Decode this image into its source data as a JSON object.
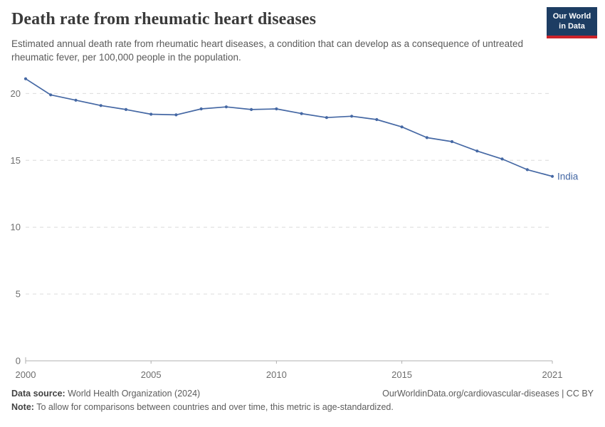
{
  "header": {
    "title": "Death rate from rheumatic heart diseases",
    "subtitle": "Estimated annual death rate from rheumatic heart diseases, a condition that can develop as a consequence of untreated rheumatic fever, per 100,000 people in the population.",
    "logo": {
      "line1": "Our World",
      "line2": "in Data"
    }
  },
  "chart_data": {
    "type": "line",
    "title": "Death rate from rheumatic heart diseases",
    "xlabel": "",
    "ylabel": "",
    "x": [
      2000,
      2001,
      2002,
      2003,
      2004,
      2005,
      2006,
      2007,
      2008,
      2009,
      2010,
      2011,
      2012,
      2013,
      2014,
      2015,
      2016,
      2017,
      2018,
      2019,
      2020,
      2021
    ],
    "series": [
      {
        "name": "India",
        "color": "#4568a4",
        "values": [
          21.1,
          19.9,
          19.5,
          19.1,
          18.8,
          18.45,
          18.4,
          18.85,
          19.0,
          18.8,
          18.85,
          18.5,
          18.2,
          18.3,
          18.05,
          17.5,
          16.7,
          16.4,
          15.7,
          15.1,
          14.3,
          13.8
        ]
      }
    ],
    "xticks": [
      2000,
      2005,
      2010,
      2015,
      2021
    ],
    "yticks": [
      0,
      5,
      10,
      15,
      20
    ],
    "xlim": [
      2000,
      2021
    ],
    "ylim": [
      0,
      21.7
    ],
    "grid": "horizontal-dashed",
    "legend_position": "end-of-line"
  },
  "colors": {
    "line": "#4568a4",
    "grid": "#dcdcdc",
    "axis": "#b0b0b0",
    "tick_text": "#6e6e6e",
    "logo_bg": "#1d3d63",
    "logo_bar": "#cc2229"
  },
  "footer": {
    "datasource_label": "Data source:",
    "datasource": " World Health Organization (2024)",
    "rights": "OurWorldinData.org/cardiovascular-diseases | CC BY",
    "note_label": "Note:",
    "note": " To allow for comparisons between countries and over time, this metric is age-standardized."
  }
}
